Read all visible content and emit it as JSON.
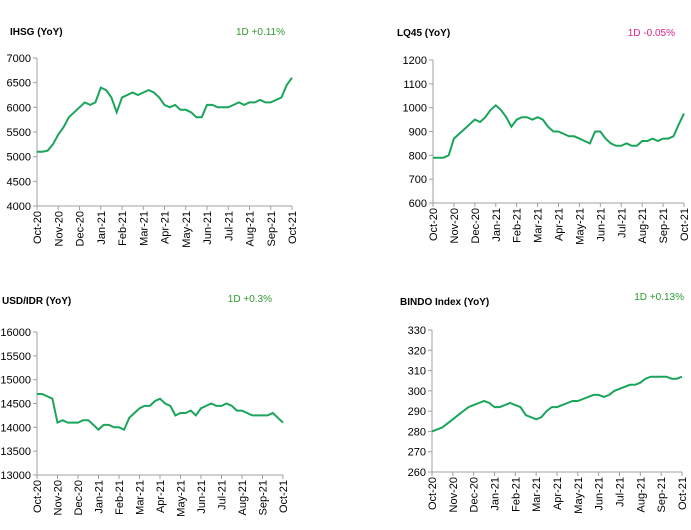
{
  "chart_data": [
    {
      "type": "line",
      "title": "IHSG (YoY)",
      "annotation": "1D +0.11%",
      "annotation_color": "#2e9a2e",
      "xticks": [
        "Oct-20",
        "Nov-20",
        "Dec-20",
        "Jan-21",
        "Feb-21",
        "Mar-21",
        "Apr-21",
        "May-21",
        "Jun-21",
        "Jul-21",
        "Aug-21",
        "Sep-21",
        "Oct-21"
      ],
      "ylim": [
        4000,
        7000
      ],
      "yticks": [
        4000,
        4500,
        5000,
        5500,
        6000,
        6500,
        7000
      ],
      "color": "#1aa55a",
      "values": [
        5100,
        5100,
        5120,
        5250,
        5450,
        5600,
        5800,
        5900,
        6000,
        6100,
        6050,
        6100,
        6400,
        6350,
        6200,
        5900,
        6200,
        6250,
        6300,
        6250,
        6300,
        6350,
        6300,
        6200,
        6050,
        6000,
        6050,
        5950,
        5950,
        5900,
        5800,
        5800,
        6050,
        6050,
        6000,
        6000,
        6000,
        6050,
        6100,
        6050,
        6100,
        6100,
        6150,
        6100,
        6100,
        6150,
        6200,
        6450,
        6600
      ]
    },
    {
      "type": "line",
      "title": "LQ45 (YoY)",
      "annotation": "1D -0.05%",
      "annotation_color": "#e0218a",
      "xticks": [
        "Oct-20",
        "Nov-20",
        "Dec-20",
        "Jan-21",
        "Feb-21",
        "Mar-21",
        "Apr-21",
        "May-21",
        "Jun-21",
        "Jul-21",
        "Aug-21",
        "Sep-21",
        "Oct-21"
      ],
      "ylim": [
        600,
        1200
      ],
      "yticks": [
        600,
        700,
        800,
        900,
        1000,
        1100,
        1200
      ],
      "color": "#1aa55a",
      "values": [
        790,
        790,
        790,
        800,
        870,
        890,
        910,
        930,
        950,
        940,
        960,
        990,
        1010,
        990,
        960,
        920,
        950,
        960,
        960,
        950,
        960,
        950,
        920,
        900,
        900,
        890,
        880,
        880,
        870,
        860,
        850,
        900,
        900,
        870,
        850,
        840,
        840,
        850,
        840,
        840,
        860,
        860,
        870,
        860,
        870,
        870,
        880,
        930,
        975
      ]
    },
    {
      "type": "line",
      "title": "USD/IDR  (YoY)",
      "annotation": "1D +0.3%",
      "annotation_color": "#2e9a2e",
      "xticks": [
        "Oct-20",
        "Nov-20",
        "Dec-20",
        "Jan-21",
        "Feb-21",
        "Mar-21",
        "Apr-21",
        "May-21",
        "Jun-21",
        "Jul-21",
        "Aug-21",
        "Sep-21",
        "Oct-21"
      ],
      "ylim": [
        13000,
        16000
      ],
      "yticks": [
        13000,
        13500,
        14000,
        14500,
        15000,
        15500,
        16000
      ],
      "color": "#1aa55a",
      "values": [
        14700,
        14700,
        14650,
        14600,
        14100,
        14150,
        14100,
        14100,
        14100,
        14150,
        14150,
        14050,
        13950,
        14050,
        14050,
        14000,
        14000,
        13950,
        14200,
        14300,
        14400,
        14450,
        14450,
        14550,
        14600,
        14500,
        14450,
        14250,
        14300,
        14300,
        14350,
        14250,
        14400,
        14450,
        14500,
        14450,
        14450,
        14500,
        14450,
        14350,
        14350,
        14300,
        14250,
        14250,
        14250,
        14250,
        14300,
        14200,
        14100
      ]
    },
    {
      "type": "line",
      "title": "BINDO Index (YoY)",
      "annotation": "1D +0.13%",
      "annotation_color": "#2e9a2e",
      "xticks": [
        "Oct-20",
        "Nov-20",
        "Dec-20",
        "Jan-21",
        "Feb-21",
        "Mar-21",
        "Apr-21",
        "May-21",
        "Jun-21",
        "Jul-21",
        "Aug-21",
        "Sep-21",
        "Oct-21"
      ],
      "ylim": [
        260,
        330
      ],
      "yticks": [
        260,
        270,
        280,
        290,
        300,
        310,
        320,
        330
      ],
      "color": "#1aa55a",
      "values": [
        280,
        281,
        282,
        284,
        286,
        288,
        290,
        292,
        293,
        294,
        295,
        294,
        292,
        292,
        293,
        294,
        293,
        292,
        288,
        287,
        286,
        287,
        290,
        292,
        292,
        293,
        294,
        295,
        295,
        296,
        297,
        298,
        298,
        297,
        298,
        300,
        301,
        302,
        303,
        303,
        304,
        306,
        307,
        307,
        307,
        307,
        306,
        306,
        307
      ]
    }
  ]
}
